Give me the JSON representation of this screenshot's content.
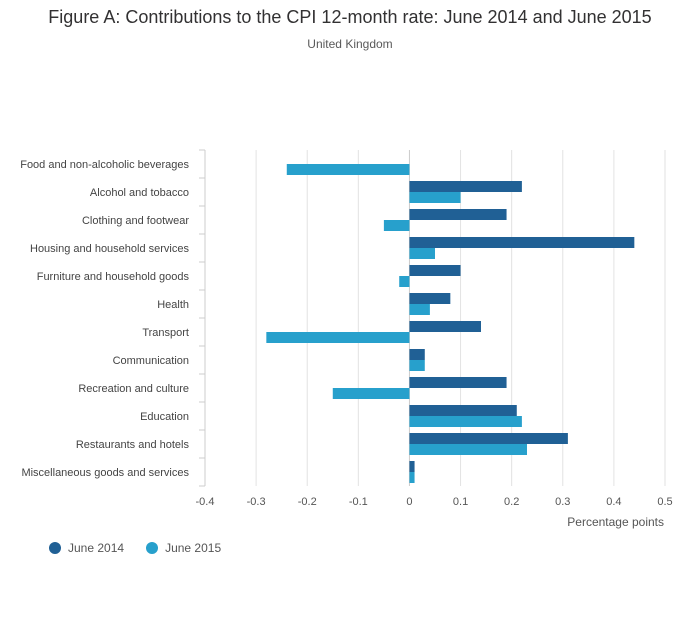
{
  "chart_data": {
    "type": "bar",
    "orientation": "horizontal",
    "title": "Figure A: Contributions to the CPI 12-month rate: June 2014 and June 2015",
    "subtitle": "United Kingdom",
    "xlabel": "Percentage points",
    "ylabel": "",
    "xlim": [
      -0.4,
      0.5
    ],
    "xticks": [
      -0.4,
      -0.3,
      -0.2,
      -0.1,
      0,
      0.1,
      0.2,
      0.3,
      0.4,
      0.5
    ],
    "xtick_labels": [
      "-0.4",
      "-0.3",
      "-0.2",
      "-0.1",
      "0",
      "0.1",
      "0.2",
      "0.3",
      "0.4",
      "0.5"
    ],
    "grid": true,
    "legend_position": "bottom-left",
    "categories": [
      "Food and non-alcoholic beverages",
      "Alcohol and tobacco",
      "Clothing and footwear",
      "Housing and household services",
      "Furniture and household goods",
      "Health",
      "Transport",
      "Communication",
      "Recreation and culture",
      "Education",
      "Restaurants and hotels",
      "Miscellaneous goods and services"
    ],
    "series": [
      {
        "name": "June 2014",
        "color": "#206095",
        "values": [
          0.0,
          0.22,
          0.19,
          0.44,
          0.1,
          0.08,
          0.14,
          0.03,
          0.19,
          0.21,
          0.31,
          0.01
        ]
      },
      {
        "name": "June 2015",
        "color": "#27a0cc",
        "values": [
          -0.24,
          0.1,
          -0.05,
          0.05,
          -0.02,
          0.04,
          -0.28,
          0.03,
          -0.15,
          0.22,
          0.23,
          0.01
        ]
      }
    ]
  }
}
